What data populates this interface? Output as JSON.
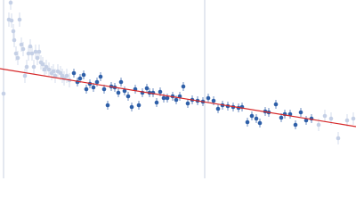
{
  "chart_data": {
    "type": "scatter",
    "xlim": [
      0,
      400
    ],
    "ylim": [
      0,
      200
    ],
    "series": [
      {
        "color": "#c5d0e6",
        "error": 8,
        "x": [
          4,
          10,
          12,
          13,
          15,
          16,
          18,
          20,
          22,
          24,
          26,
          28,
          30,
          32,
          34,
          36,
          38,
          40,
          42,
          44,
          46,
          48,
          50,
          52,
          55,
          58,
          60,
          62,
          65,
          68,
          70,
          72,
          75,
          78
        ],
        "values": [
          95,
          178,
          197,
          177,
          165,
          155,
          140,
          135,
          178,
          150,
          145,
          115,
          125,
          140,
          148,
          140,
          125,
          142,
          135,
          142,
          130,
          128,
          122,
          125,
          122,
          118,
          120,
          115,
          120,
          118,
          115,
          112,
          115,
          110
        ]
      },
      {
        "color": "#2e5fa8",
        "error": 5,
        "x": [
          83,
          87,
          90,
          94,
          97,
          101,
          105,
          109,
          113,
          117,
          121,
          125,
          129,
          133,
          136,
          140,
          144,
          148,
          152,
          156,
          160,
          165,
          168,
          172,
          176,
          180,
          184,
          188,
          194,
          198,
          202,
          206,
          211,
          216,
          222,
          228,
          234,
          240,
          245,
          250,
          256,
          262,
          268,
          272,
          278,
          283,
          288,
          292,
          298,
          302,
          310,
          316,
          320,
          326,
          332,
          338,
          344,
          350
        ],
        "values": [
          118,
          108,
          112,
          116,
          100,
          106,
          102,
          108,
          114,
          100,
          82,
          103,
          102,
          96,
          108,
          98,
          92,
          80,
          100,
          82,
          96,
          101,
          96,
          96,
          85,
          97,
          90,
          90,
          92,
          88,
          92,
          103,
          84,
          88,
          87,
          86,
          90,
          87,
          78,
          82,
          81,
          80,
          79,
          80,
          63,
          70,
          67,
          62,
          75,
          74,
          83,
          68,
          72,
          72,
          60,
          74,
          65,
          67
        ]
      },
      {
        "color": "#c5d0e6",
        "error": 7,
        "x": [
          358,
          365,
          372,
          380,
          390,
          397
        ],
        "values": [
          60,
          70,
          67,
          45,
          65,
          67
        ]
      }
    ],
    "fit": {
      "color": "#d62728",
      "x": [
        0,
        400
      ],
      "values": [
        123,
        58
      ]
    },
    "vline": {
      "x": 230,
      "color": "#c8d0e0"
    }
  }
}
